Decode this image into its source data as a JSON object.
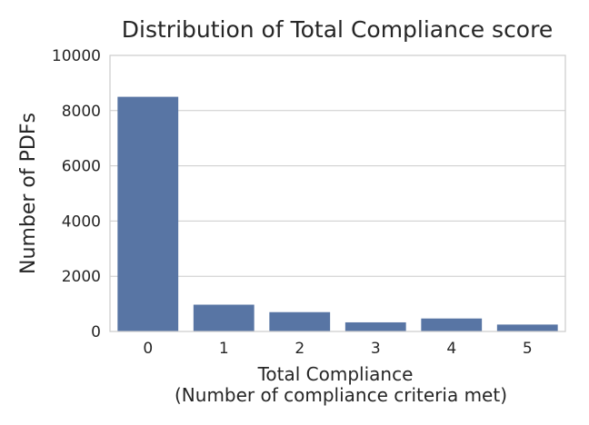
{
  "chart_data": {
    "type": "bar",
    "title": "Distribution of Total Compliance score",
    "xlabel": "Total Compliance",
    "xlabel_line2": "(Number of compliance criteria met)",
    "ylabel": "Number of PDFs",
    "categories": [
      "0",
      "1",
      "2",
      "3",
      "4",
      "5"
    ],
    "values": [
      8500,
      970,
      700,
      330,
      470,
      250
    ],
    "ylim": [
      0,
      10000
    ],
    "yticks": [
      "0",
      "2000",
      "4000",
      "6000",
      "8000",
      "10000"
    ],
    "ytick_values": [
      0,
      2000,
      4000,
      6000,
      8000,
      10000
    ],
    "grid": true,
    "bar_color": "#5875a4"
  }
}
